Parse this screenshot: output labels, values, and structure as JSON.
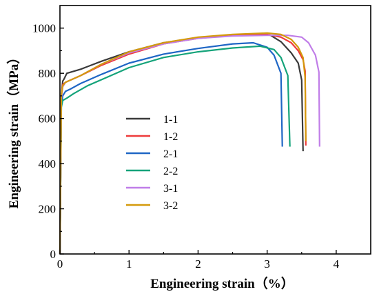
{
  "chart_data": {
    "type": "line",
    "xlabel": "Engineering strain（%）",
    "ylabel": "Engineering strain（MPa）",
    "xlim": [
      0,
      4.5
    ],
    "ylim": [
      0,
      1100
    ],
    "xticks": [
      "0",
      "1",
      "2",
      "3",
      "4"
    ],
    "yticks": [
      "0",
      "200",
      "400",
      "600",
      "800",
      "1000"
    ],
    "grid": false,
    "legend_position": "center-left",
    "series": [
      {
        "name": "1-1",
        "color": "#3a3a3a",
        "points": [
          [
            0,
            0
          ],
          [
            0.02,
            700
          ],
          [
            0.04,
            765
          ],
          [
            0.06,
            775
          ],
          [
            0.1,
            800
          ],
          [
            0.3,
            818
          ],
          [
            0.6,
            853
          ],
          [
            1.0,
            895
          ],
          [
            1.5,
            935
          ],
          [
            2.0,
            958
          ],
          [
            2.5,
            970
          ],
          [
            2.9,
            975
          ],
          [
            3.05,
            968
          ],
          [
            3.2,
            940
          ],
          [
            3.35,
            890
          ],
          [
            3.45,
            845
          ],
          [
            3.5,
            770
          ],
          [
            3.52,
            455
          ]
        ]
      },
      {
        "name": "1-2",
        "color": "#ee3b3b",
        "points": [
          [
            0,
            0
          ],
          [
            0.02,
            700
          ],
          [
            0.04,
            750
          ],
          [
            0.08,
            760
          ],
          [
            0.3,
            790
          ],
          [
            0.6,
            835
          ],
          [
            1.0,
            885
          ],
          [
            1.5,
            930
          ],
          [
            2.0,
            955
          ],
          [
            2.5,
            968
          ],
          [
            3.0,
            972
          ],
          [
            3.2,
            960
          ],
          [
            3.35,
            935
          ],
          [
            3.45,
            900
          ],
          [
            3.52,
            860
          ],
          [
            3.55,
            810
          ],
          [
            3.56,
            480
          ]
        ]
      },
      {
        "name": "2-1",
        "color": "#1f66c5",
        "points": [
          [
            0,
            0
          ],
          [
            0.02,
            660
          ],
          [
            0.04,
            700
          ],
          [
            0.08,
            720
          ],
          [
            0.15,
            730
          ],
          [
            0.3,
            755
          ],
          [
            0.6,
            795
          ],
          [
            1.0,
            845
          ],
          [
            1.5,
            885
          ],
          [
            2.0,
            910
          ],
          [
            2.5,
            930
          ],
          [
            2.8,
            935
          ],
          [
            3.0,
            915
          ],
          [
            3.1,
            880
          ],
          [
            3.2,
            800
          ],
          [
            3.22,
            475
          ]
        ]
      },
      {
        "name": "2-2",
        "color": "#14a37a",
        "points": [
          [
            0,
            0
          ],
          [
            0.02,
            650
          ],
          [
            0.04,
            680
          ],
          [
            0.1,
            690
          ],
          [
            0.2,
            710
          ],
          [
            0.4,
            745
          ],
          [
            0.7,
            785
          ],
          [
            1.0,
            825
          ],
          [
            1.5,
            870
          ],
          [
            2.0,
            895
          ],
          [
            2.5,
            912
          ],
          [
            2.9,
            920
          ],
          [
            3.1,
            905
          ],
          [
            3.2,
            870
          ],
          [
            3.3,
            790
          ],
          [
            3.33,
            475
          ]
        ]
      },
      {
        "name": "3-1",
        "color": "#c07de8",
        "points": [
          [
            0,
            0
          ],
          [
            0.02,
            690
          ],
          [
            0.04,
            740
          ],
          [
            0.08,
            760
          ],
          [
            0.3,
            790
          ],
          [
            0.6,
            840
          ],
          [
            1.0,
            890
          ],
          [
            1.5,
            930
          ],
          [
            2.0,
            955
          ],
          [
            2.5,
            965
          ],
          [
            3.0,
            968
          ],
          [
            3.3,
            968
          ],
          [
            3.5,
            960
          ],
          [
            3.6,
            935
          ],
          [
            3.7,
            880
          ],
          [
            3.75,
            805
          ],
          [
            3.76,
            475
          ]
        ]
      },
      {
        "name": "3-2",
        "color": "#d49a0c",
        "points": [
          [
            0,
            0
          ],
          [
            0.02,
            700
          ],
          [
            0.04,
            745
          ],
          [
            0.08,
            760
          ],
          [
            0.3,
            790
          ],
          [
            0.6,
            840
          ],
          [
            1.0,
            895
          ],
          [
            1.5,
            935
          ],
          [
            2.0,
            960
          ],
          [
            2.5,
            972
          ],
          [
            3.0,
            978
          ],
          [
            3.2,
            972
          ],
          [
            3.35,
            950
          ],
          [
            3.45,
            915
          ],
          [
            3.52,
            870
          ],
          [
            3.55,
            780
          ],
          [
            3.56,
            500
          ]
        ]
      }
    ]
  }
}
